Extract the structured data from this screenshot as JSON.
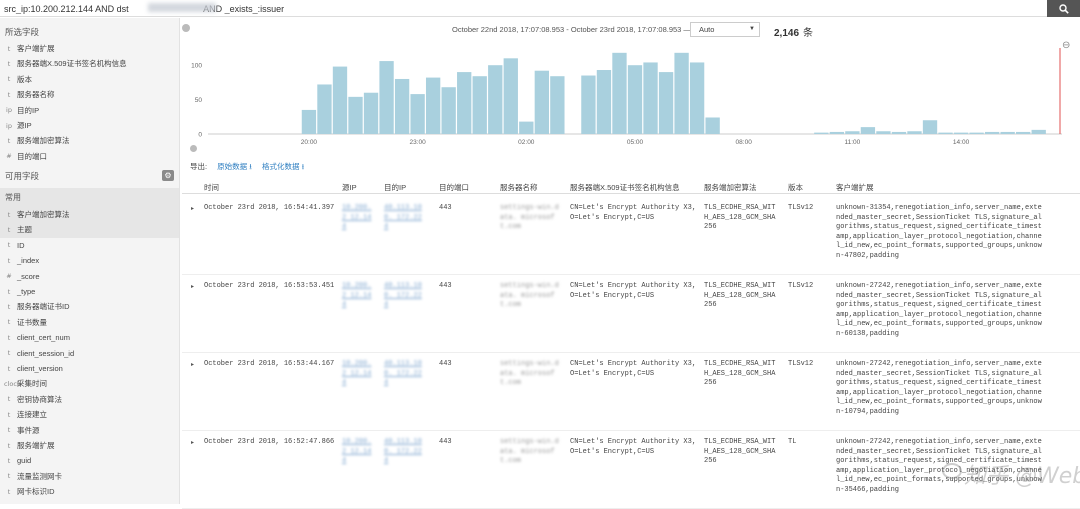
{
  "search": {
    "query": "src_ip:10.200.212.144 AND dst                              AND _exists_:issuer"
  },
  "sidebar": {
    "selected_fields_title": "所选字段",
    "selected_fields": [
      {
        "icon": "t",
        "label": "客户端扩展"
      },
      {
        "icon": "t",
        "label": "服务器端X.509证书签名机构信息"
      },
      {
        "icon": "t",
        "label": "版本"
      },
      {
        "icon": "t",
        "label": "服务器名称"
      },
      {
        "icon": "ip",
        "label": "目的IP"
      },
      {
        "icon": "ip",
        "label": "源IP"
      },
      {
        "icon": "t",
        "label": "服务端加密算法"
      },
      {
        "icon": "#",
        "label": "目的端口"
      }
    ],
    "available_fields_title": "可用字段",
    "common_title": "常用",
    "available_fields": [
      {
        "icon": "t",
        "label": "客户端加密算法"
      },
      {
        "icon": "t",
        "label": "主题"
      },
      {
        "icon": "t",
        "label": "ID"
      },
      {
        "icon": "t",
        "label": "_index"
      },
      {
        "icon": "#",
        "label": "_score"
      },
      {
        "icon": "t",
        "label": "_type"
      },
      {
        "icon": "t",
        "label": "服务器端证书ID"
      },
      {
        "icon": "t",
        "label": "证书数量"
      },
      {
        "icon": "t",
        "label": "client_cert_num"
      },
      {
        "icon": "t",
        "label": "client_session_id"
      },
      {
        "icon": "t",
        "label": "client_version"
      },
      {
        "icon": "clock",
        "label": "采集时间"
      },
      {
        "icon": "t",
        "label": "密钥协商算法"
      },
      {
        "icon": "t",
        "label": "连接建立"
      },
      {
        "icon": "t",
        "label": "事件源"
      },
      {
        "icon": "t",
        "label": "服务端扩展"
      },
      {
        "icon": "t",
        "label": "guid"
      },
      {
        "icon": "t",
        "label": "流量监测网卡"
      },
      {
        "icon": "t",
        "label": "网卡标识ID"
      }
    ]
  },
  "header": {
    "date_range": "October 22nd 2018, 17:07:08.953 - October 23rd 2018, 17:07:08.953 —",
    "interval": "Auto",
    "hits_count": "2,146",
    "hits_unit": "条"
  },
  "chart_data": {
    "type": "bar",
    "ylim": [
      0,
      125
    ],
    "y_ticks": [
      0,
      50,
      100
    ],
    "x_tick_labels": [
      "20:00",
      "23:00",
      "02:00",
      "05:00",
      "08:00",
      "11:00",
      "14:00"
    ],
    "values": [
      0,
      0,
      0,
      0,
      0,
      0,
      35,
      72,
      98,
      54,
      60,
      106,
      80,
      58,
      82,
      68,
      90,
      84,
      100,
      110,
      18,
      92,
      84,
      0,
      85,
      93,
      118,
      100,
      104,
      90,
      118,
      104,
      24,
      0,
      0,
      0,
      0,
      0,
      0,
      2,
      3,
      4,
      10,
      4,
      3,
      4,
      20,
      2,
      2,
      2,
      3,
      3,
      3,
      6,
      0
    ],
    "bar_color": "#a9d0de",
    "grid": false,
    "current_marker_color": "#e05050"
  },
  "export": {
    "label": "导出:",
    "raw_label": "原始数据",
    "formatted_label": "格式化数据"
  },
  "table": {
    "columns": [
      "时间",
      "源IP",
      "目的IP",
      "目的端口",
      "服务器名称",
      "服务器端X.509证书签名机构信息",
      "服务端加密算法",
      "版本",
      "客户端扩展"
    ],
    "rows": [
      {
        "time": "October 23rd 2018, 16:54:41.397",
        "src_ip": "10.200.2 12.144",
        "dst_ip": "40.113.100. 172.224",
        "port": "443",
        "server": "settings-win.data. microsoft.com",
        "issuer": "CN=Let's Encrypt Authority X3,O=Let's Encrypt,C=US",
        "cipher": "TLS_ECDHE_RSA_WITH_AES_128_GCM_SHA256",
        "version": "TLSv12",
        "ext": "unknown-31354,renegotiation_info,server_name,extended_master_secret,SessionTicket TLS,signature_algorithms,status_request,signed_certificate_timestamp,application_layer_protocol_negotiation,channel_id_new,ec_point_formats,supported_groups,unknown-47802,padding"
      },
      {
        "time": "October 23rd 2018, 16:53:53.451",
        "src_ip": "10.200.2 12.144",
        "dst_ip": "40.113.100. 172.224",
        "port": "443",
        "server": "settings-win.data. microsoft.com",
        "issuer": "CN=Let's Encrypt Authority X3,O=Let's Encrypt,C=US",
        "cipher": "TLS_ECDHE_RSA_WITH_AES_128_GCM_SHA256",
        "version": "TLSv12",
        "ext": "unknown-27242,renegotiation_info,server_name,extended_master_secret,SessionTicket TLS,signature_algorithms,status_request,signed_certificate_timestamp,application_layer_protocol_negotiation,channel_id_new,ec_point_formats,supported_groups,unknown-60138,padding"
      },
      {
        "time": "October 23rd 2018, 16:53:44.167",
        "src_ip": "10.200.2 12.144",
        "dst_ip": "40.113.100. 172.224",
        "port": "443",
        "server": "settings-win.data. microsoft.com",
        "issuer": "CN=Let's Encrypt Authority X3,O=Let's Encrypt,C=US",
        "cipher": "TLS_ECDHE_RSA_WITH_AES_128_GCM_SHA256",
        "version": "TLSv12",
        "ext": "unknown-27242,renegotiation_info,server_name,extended_master_secret,SessionTicket TLS,signature_algorithms,status_request,signed_certificate_timestamp,application_layer_protocol_negotiation,channel_id_new,ec_point_formats,supported_groups,unknown-10794,padding"
      },
      {
        "time": "October 23rd 2018, 16:52:47.866",
        "src_ip": "10.200.2 12.144",
        "dst_ip": "40.113.100. 172.224",
        "port": "443",
        "server": "settings-win.data. microsoft.com",
        "issuer": "CN=Let's Encrypt Authority X3,O=Let's Encrypt,C=US",
        "cipher": "TLS_ECDHE_RSA_WITH_AES_128_GCM_SHA256",
        "version": "TL",
        "ext": "unknown-27242,renegotiation_info,server_name,extended_master_secret,SessionTicket TLS,signature_algorithms,status_request,signed_certificate_timestamp,application_layer_protocol_negotiation,channel_id_new,ec_point_formats,supported_groups,unknown-35466,padding"
      }
    ]
  },
  "watermark": "知乎 @WebRAY"
}
